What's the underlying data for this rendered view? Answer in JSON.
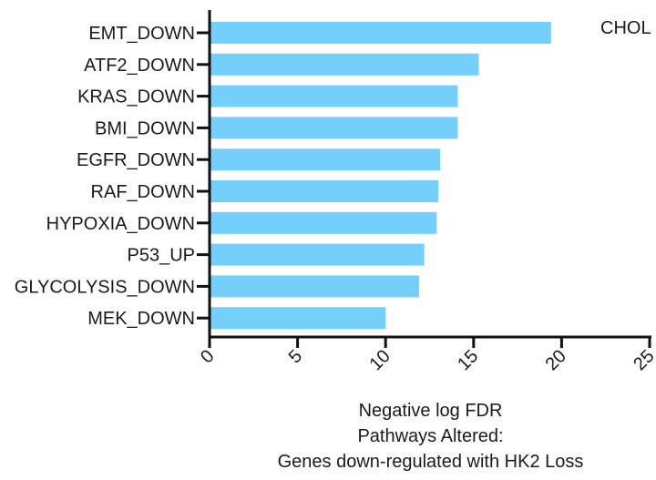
{
  "chart_data": {
    "type": "bar",
    "orientation": "horizontal",
    "categories": [
      "EMT_DOWN",
      "ATF2_DOWN",
      "KRAS_DOWN",
      "BMI_DOWN",
      "EGFR_DOWN",
      "RAF_DOWN",
      "HYPOXIA_DOWN",
      "P53_UP",
      "GLYCOLYSIS_DOWN",
      "MEK_DOWN"
    ],
    "values": [
      19.4,
      15.3,
      14.1,
      14.1,
      13.1,
      13.0,
      12.9,
      12.2,
      11.9,
      10.0
    ],
    "xlabel": "Negative log FDR",
    "xlim": [
      0,
      25
    ],
    "xticks": [
      0,
      5,
      10,
      15,
      20,
      25
    ],
    "tick_labels": [
      "0",
      "5",
      "10",
      "15",
      "20",
      "25"
    ],
    "annotation": "CHOL",
    "caption_line1": "Pathways Altered:",
    "caption_line2": "Genes down-regulated with HK2 Loss",
    "bar_color": "#74d0fb",
    "grid": false
  }
}
